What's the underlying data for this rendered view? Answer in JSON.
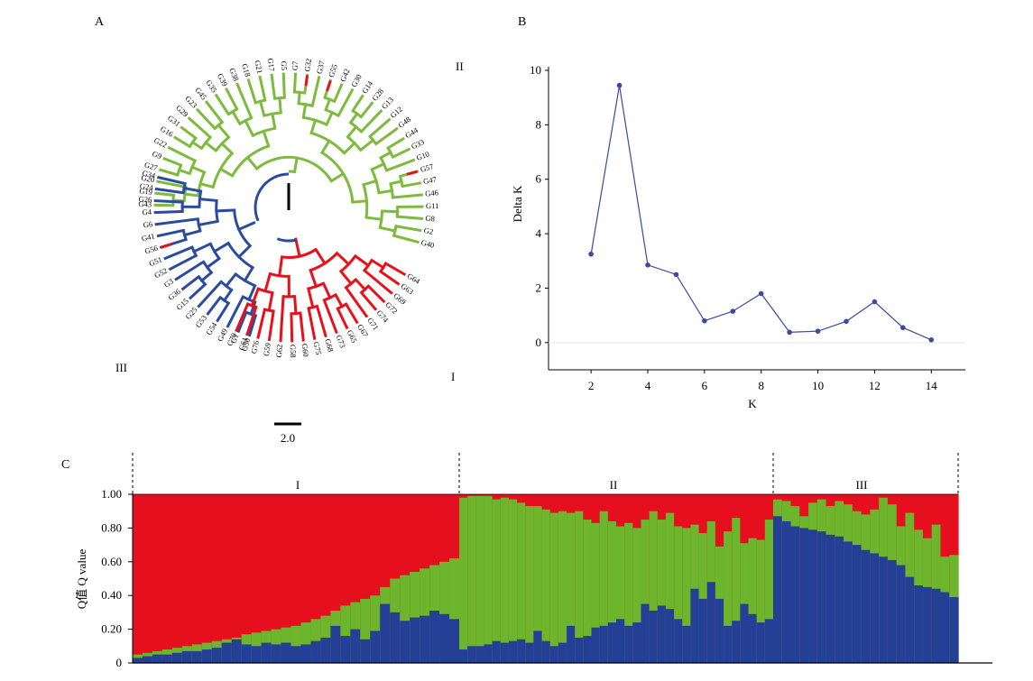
{
  "figure": {
    "panel_a_letter": "A",
    "panel_b_letter": "B",
    "panel_c_letter": "C"
  },
  "tree": {
    "scale_label": "2.0",
    "cluster_labels": [
      "I",
      "II",
      "III"
    ],
    "colors": {
      "I": "#e8111b",
      "II": "#7dbb3c",
      "III": "#2b4ba0",
      "root": "#000000"
    },
    "tips_green": [
      "G40",
      "G2",
      "G8",
      "G11",
      "G46",
      "G47",
      "G57",
      "G10",
      "G33",
      "G44",
      "G48",
      "G12",
      "G13",
      "G28",
      "G14",
      "G30",
      "G42",
      "G55",
      "G37",
      "G32",
      "G7",
      "G5",
      "G17",
      "G21",
      "G18",
      "G38",
      "G39",
      "G35",
      "G45",
      "G23",
      "G29",
      "G31",
      "G16",
      "G22",
      "G9",
      "G27",
      "G20",
      "G19",
      "G43"
    ],
    "tips_blue": [
      "G34",
      "G24",
      "G26",
      "G4",
      "G6",
      "G41",
      "G56",
      "G51",
      "G52",
      "G3",
      "G36",
      "G15",
      "G25",
      "G53",
      "G54",
      "G49",
      "G1",
      "G50"
    ],
    "tips_red": [
      "G70",
      "G61",
      "G76",
      "G59",
      "G62",
      "G58",
      "G60",
      "G75",
      "G68",
      "G73",
      "G65",
      "G67",
      "G71",
      "G74",
      "G72",
      "G69",
      "G63",
      "G64"
    ]
  },
  "chart_data": [
    {
      "type": "line",
      "title": "",
      "xlabel": "K",
      "ylabel": "Delta K",
      "x": [
        2,
        3,
        4,
        5,
        6,
        7,
        8,
        9,
        10,
        11,
        12,
        13,
        14
      ],
      "y": [
        3.25,
        9.45,
        2.85,
        2.5,
        0.8,
        1.15,
        1.8,
        0.38,
        0.42,
        0.78,
        1.5,
        0.55,
        0.1
      ],
      "xlim": [
        0.5,
        15.2
      ],
      "ylim": [
        -1,
        10
      ],
      "xticks": [
        2,
        4,
        6,
        8,
        10,
        12,
        14
      ],
      "yticks": [
        0,
        2,
        4,
        6,
        8,
        10
      ],
      "color": "#3b4a9e"
    },
    {
      "type": "bar",
      "title": "",
      "ylabel": "Q值 Q value",
      "ylim": [
        0,
        1
      ],
      "yticks": [
        "0",
        "0.20",
        "0.40",
        "0.60",
        "0.80",
        "1.00"
      ],
      "groups": [
        "I",
        "II",
        "III"
      ],
      "colors": {
        "blue": "#233f96",
        "green": "#6cb52c",
        "red": "#e60f1e"
      },
      "group_I": {
        "blue": [
          0.03,
          0.04,
          0.05,
          0.05,
          0.06,
          0.07,
          0.07,
          0.08,
          0.09,
          0.12,
          0.14,
          0.11,
          0.1,
          0.12,
          0.11,
          0.12,
          0.1,
          0.11,
          0.13,
          0.15,
          0.22,
          0.16,
          0.2,
          0.14,
          0.19,
          0.35,
          0.3,
          0.25,
          0.27,
          0.28,
          0.31,
          0.29,
          0.26
        ],
        "green": [
          0.05,
          0.06,
          0.07,
          0.08,
          0.09,
          0.1,
          0.11,
          0.12,
          0.13,
          0.14,
          0.15,
          0.17,
          0.18,
          0.19,
          0.2,
          0.21,
          0.22,
          0.24,
          0.26,
          0.28,
          0.31,
          0.34,
          0.36,
          0.38,
          0.4,
          0.45,
          0.5,
          0.52,
          0.54,
          0.56,
          0.58,
          0.6,
          0.62
        ]
      },
      "group_II": {
        "blue": [
          0.08,
          0.1,
          0.1,
          0.11,
          0.13,
          0.12,
          0.13,
          0.14,
          0.12,
          0.19,
          0.13,
          0.1,
          0.12,
          0.22,
          0.15,
          0.16,
          0.21,
          0.22,
          0.24,
          0.26,
          0.22,
          0.24,
          0.35,
          0.31,
          0.34,
          0.32,
          0.26,
          0.22,
          0.44,
          0.38,
          0.48,
          0.38,
          0.22,
          0.25,
          0.35,
          0.29,
          0.24,
          0.26
        ],
        "green": [
          0.98,
          0.99,
          0.99,
          0.99,
          0.97,
          0.98,
          0.97,
          0.95,
          0.93,
          0.93,
          0.91,
          0.89,
          0.9,
          0.89,
          0.9,
          0.85,
          0.83,
          0.9,
          0.84,
          0.81,
          0.83,
          0.8,
          0.85,
          0.9,
          0.85,
          0.89,
          0.81,
          0.8,
          0.82,
          0.77,
          0.84,
          0.69,
          0.78,
          0.86,
          0.71,
          0.74,
          0.73,
          0.85
        ]
      },
      "group_III": {
        "blue": [
          0.87,
          0.84,
          0.81,
          0.8,
          0.79,
          0.78,
          0.76,
          0.75,
          0.72,
          0.7,
          0.67,
          0.65,
          0.63,
          0.61,
          0.58,
          0.51,
          0.46,
          0.45,
          0.44,
          0.42,
          0.39
        ],
        "green": [
          0.97,
          0.96,
          0.93,
          0.87,
          0.95,
          0.97,
          0.93,
          0.96,
          0.94,
          0.9,
          0.88,
          0.91,
          0.98,
          0.94,
          0.81,
          0.89,
          0.79,
          0.74,
          0.82,
          0.63,
          0.64
        ]
      }
    }
  ]
}
